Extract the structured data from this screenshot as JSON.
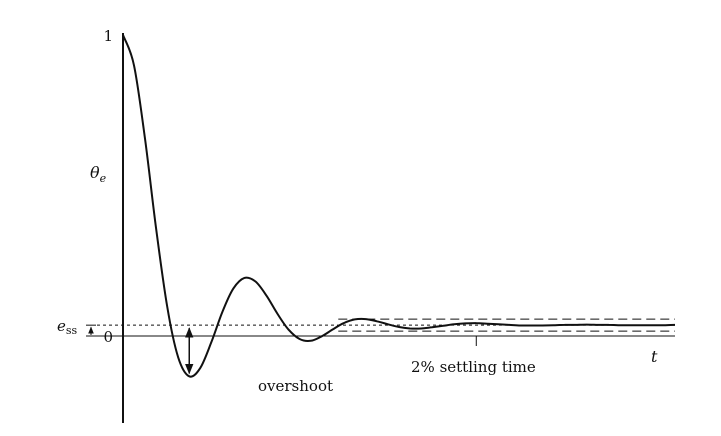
{
  "chart_data": {
    "type": "line",
    "title": "",
    "xlabel": "t",
    "ylabel": "θ",
    "ylabel_subscript": "e",
    "ylim": [
      -0.25,
      1
    ],
    "y_ticks": [
      "1",
      "0"
    ],
    "series": [
      {
        "x": [
          0,
          0.02,
          0.04,
          0.06,
          0.08,
          0.1,
          0.12,
          0.14,
          0.16,
          0.18,
          0.2,
          0.22,
          0.24,
          0.26,
          0.28,
          0.3,
          0.32,
          0.34,
          0.36,
          0.38,
          0.4,
          0.42,
          0.44,
          0.46,
          0.48,
          0.5,
          0.52,
          0.54,
          0.56,
          0.58,
          0.6,
          0.62,
          0.64,
          0.66,
          0.68,
          0.7,
          0.72,
          0.74,
          0.76,
          0.78,
          0.8,
          0.82,
          0.84,
          0.86,
          0.88,
          0.9,
          0.92,
          0.94,
          0.96,
          0.98,
          1
        ],
        "values": [
          1,
          0.899,
          0.653,
          0.357,
          0.098,
          -0.071,
          -0.134,
          -0.106,
          -0.021,
          0.08,
          0.158,
          0.193,
          0.181,
          0.134,
          0.073,
          0.021,
          -0.01,
          -0.016,
          -0.001,
          0.022,
          0.043,
          0.055,
          0.056,
          0.049,
          0.039,
          0.03,
          0.025,
          0.025,
          0.029,
          0.034,
          0.039,
          0.042,
          0.043,
          0.041,
          0.039,
          0.037,
          0.035,
          0.035,
          0.035,
          0.036,
          0.037,
          0.037,
          0.038,
          0.037,
          0.037,
          0.036,
          0.036,
          0.036,
          0.036,
          0.036,
          0.037
        ]
      }
    ],
    "steady_state_error": 0.036,
    "settling_band": 0.02,
    "settling_band_start_x": 0.39,
    "settling_time_x": 0.64,
    "overshoot_min_y": -0.134,
    "overshoot_x": 0.12,
    "ess_label": "e",
    "ess_subscript": "ss",
    "annotations": {
      "overshoot": "overshoot",
      "settling": "2% settling time"
    }
  }
}
